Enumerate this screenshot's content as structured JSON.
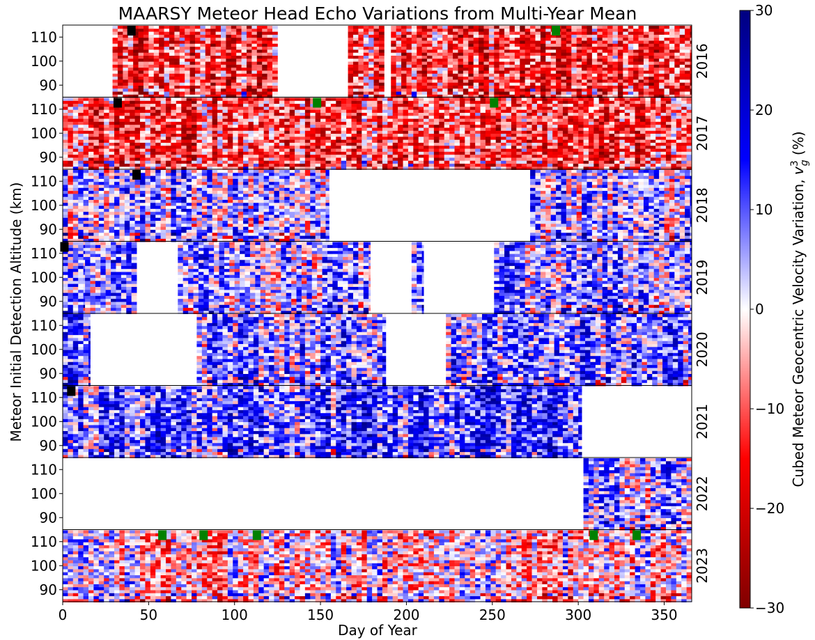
{
  "chart_data": {
    "type": "heatmap",
    "title": "MAARSY Meteor Head Echo Variations from Multi-Year Mean",
    "xlabel": "Day of Year",
    "ylabel": "Meteor Initial Detection Altitude (km)",
    "xlim": [
      0,
      366
    ],
    "xticks": [
      0,
      50,
      100,
      150,
      200,
      250,
      300,
      350
    ],
    "ylim": [
      85,
      115
    ],
    "yticks": [
      90,
      100,
      110
    ],
    "colorbar": {
      "label_prefix": "Cubed Meteor Geocentric Velocity Variation, ",
      "label_symbol": "v",
      "label_superscript": "3",
      "label_subscript": "g",
      "label_suffix": " (%)",
      "range": [
        -30,
        30
      ],
      "ticks": [
        30,
        20,
        10,
        0,
        -10,
        -20,
        -30
      ],
      "tick_labels": [
        "30",
        "20",
        "10",
        "0",
        "−10",
        "−20",
        "−30"
      ],
      "colormap": "seismic_r",
      "colors": {
        "low": "#800000",
        "mid": "#ffffff",
        "high": "#000080"
      }
    },
    "panels": [
      {
        "year": "2016",
        "bias": -0.45,
        "segments": [
          [
            29,
            125
          ],
          [
            166,
            187
          ],
          [
            191,
            366
          ]
        ],
        "markers": [
          {
            "day": 40,
            "color": "#000000"
          },
          {
            "day": 287,
            "color": "#008000"
          }
        ]
      },
      {
        "year": "2017",
        "bias": -0.4,
        "segments": [
          [
            0,
            240
          ],
          [
            240,
            366
          ]
        ],
        "markers": [
          {
            "day": 32,
            "color": "#000000"
          },
          {
            "day": 148,
            "color": "#008000"
          },
          {
            "day": 251,
            "color": "#008000"
          }
        ]
      },
      {
        "year": "2018",
        "bias": 0.15,
        "segments": [
          [
            0,
            155
          ],
          [
            272,
            366
          ]
        ],
        "markers": [
          {
            "day": 43,
            "color": "#000000"
          }
        ]
      },
      {
        "year": "2019",
        "bias": 0.22,
        "segments": [
          [
            0,
            13
          ],
          [
            13,
            43
          ],
          [
            67,
            179
          ],
          [
            203,
            210
          ],
          [
            251,
            366
          ]
        ],
        "markers": [
          {
            "day": 1,
            "color": "#000000"
          }
        ]
      },
      {
        "year": "2020",
        "bias": 0.28,
        "segments": [
          [
            0,
            16
          ],
          [
            78,
            188
          ],
          [
            223,
            366
          ]
        ],
        "markers": []
      },
      {
        "year": "2021",
        "bias": 0.35,
        "segments": [
          [
            0,
            302
          ]
        ],
        "markers": [
          {
            "day": 5,
            "color": "#000000"
          }
        ]
      },
      {
        "year": "2022",
        "bias": 0.15,
        "segments": [
          [
            303,
            366
          ]
        ],
        "markers": []
      },
      {
        "year": "2023",
        "bias": -0.05,
        "segments": [
          [
            0,
            366
          ]
        ],
        "markers": [
          {
            "day": 58,
            "color": "#008000"
          },
          {
            "day": 82,
            "color": "#008000"
          },
          {
            "day": 113,
            "color": "#008000"
          },
          {
            "day": 309,
            "color": "#008000"
          },
          {
            "day": 334,
            "color": "#008000"
          }
        ]
      }
    ]
  }
}
